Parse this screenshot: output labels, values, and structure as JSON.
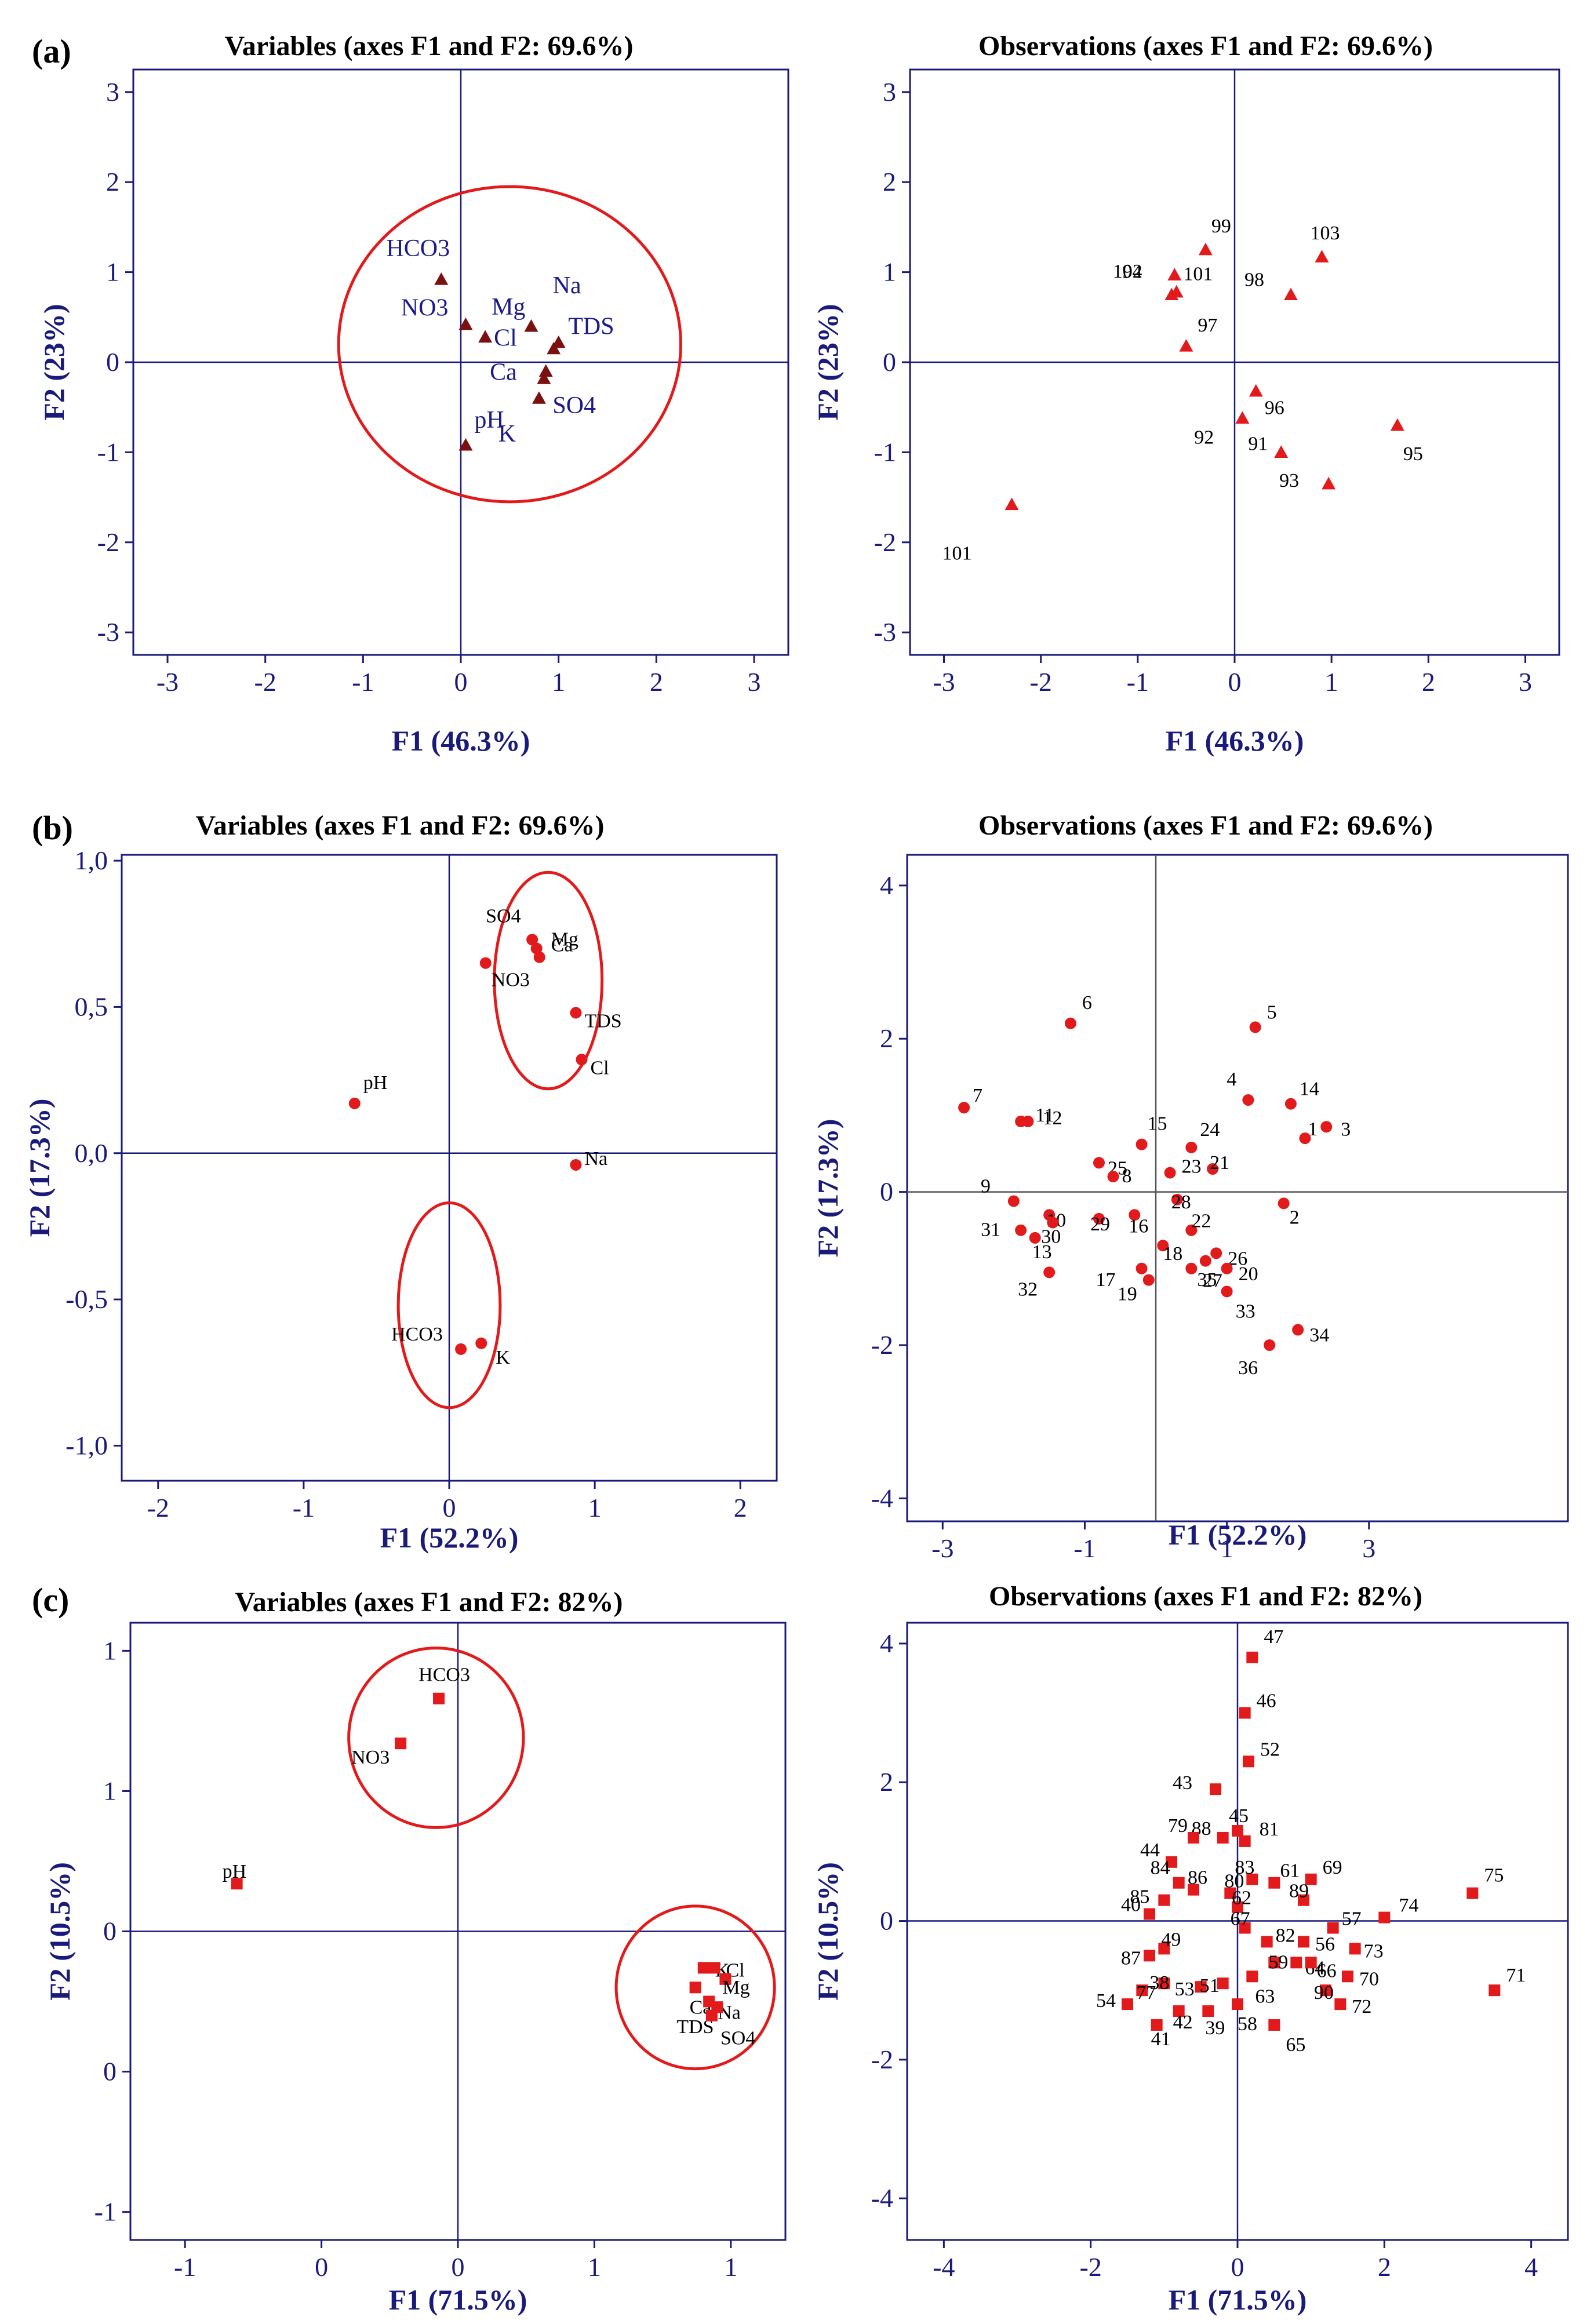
{
  "figure_labels": [
    "(a)",
    "(b)",
    "(c)"
  ],
  "colors": {
    "axis": "#1a1a7a",
    "red": "#e31a1c",
    "darkred": "#7a1010",
    "circle": "#e31a1c"
  },
  "chart_data": [
    {
      "id": "a-var",
      "type": "scatter",
      "title": "Variables (axes F1 and F2: 69.6%)",
      "xlabel": "F1 (46.3%)",
      "ylabel": "F2 (23%)",
      "xlim": [
        -3.35,
        3.35
      ],
      "ylim": [
        -3.25,
        3.25
      ],
      "xticks": [
        -3,
        -2,
        -1,
        0,
        1,
        2,
        3
      ],
      "xtick_labels": [
        "-3",
        "-2",
        "-1",
        "0",
        "1",
        "2",
        "3"
      ],
      "yticks": [
        -3,
        -2,
        -1,
        0,
        1,
        2,
        3
      ],
      "ytick_labels": [
        "-3",
        "-2",
        "-1",
        "0",
        "1",
        "2",
        "3"
      ],
      "marker": "triangle",
      "color": "#7a1010",
      "label_color": "#1a1a8a",
      "points": [
        {
          "label": "HCO3",
          "x": -0.2,
          "y": 0.92
        },
        {
          "label": "NO3",
          "x": 0.05,
          "y": 0.42
        },
        {
          "label": "Cl",
          "x": 0.25,
          "y": 0.28
        },
        {
          "label": "Mg",
          "x": 0.72,
          "y": 0.4
        },
        {
          "label": "Na",
          "x": 1.0,
          "y": 0.22
        },
        {
          "label": "TDS",
          "x": 0.95,
          "y": 0.15
        },
        {
          "label": "Ca",
          "x": 0.87,
          "y": -0.1
        },
        {
          "label": "K",
          "x": 0.8,
          "y": -0.4
        },
        {
          "label": "SO4",
          "x": 0.85,
          "y": -0.18
        },
        {
          "label": "pH",
          "x": 0.05,
          "y": -0.92
        }
      ],
      "circles": [
        {
          "cx": 0.5,
          "cy": 0.2,
          "r": 1.75
        }
      ]
    },
    {
      "id": "a-obs",
      "type": "scatter",
      "title": "Observations (axes F1 and F2: 69.6%)",
      "xlabel": "F1 (46.3%)",
      "ylabel": "F2 (23%)",
      "xlim": [
        -3.35,
        3.35
      ],
      "ylim": [
        -3.25,
        3.25
      ],
      "xticks": [
        -3,
        -2,
        -1,
        0,
        1,
        2,
        3
      ],
      "xtick_labels": [
        "-3",
        "-2",
        "-1",
        "0",
        "1",
        "2",
        "3"
      ],
      "yticks": [
        -3,
        -2,
        -1,
        0,
        1,
        2,
        3
      ],
      "ytick_labels": [
        "-3",
        "-2",
        "-1",
        "0",
        "1",
        "2",
        "3"
      ],
      "marker": "triangle",
      "color": "#e31a1c",
      "label_color": "#000",
      "points": [
        {
          "label": "103",
          "x": 0.9,
          "y": 1.17
        },
        {
          "label": "99",
          "x": -0.3,
          "y": 1.25
        },
        {
          "label": "98",
          "x": 0.58,
          "y": 0.75
        },
        {
          "label": "94",
          "x": -0.62,
          "y": 0.97
        },
        {
          "label": "102",
          "x": -0.6,
          "y": 0.78
        },
        {
          "label": "101",
          "x": -0.65,
          "y": 0.75
        },
        {
          "label": "97",
          "x": -0.5,
          "y": 0.18
        },
        {
          "label": "96",
          "x": 0.22,
          "y": -0.32
        },
        {
          "label": "95",
          "x": 1.68,
          "y": -0.7
        },
        {
          "label": "91",
          "x": 0.08,
          "y": -0.62
        },
        {
          "label": "92",
          "x": 0.48,
          "y": -1.0
        },
        {
          "label": "93",
          "x": 0.97,
          "y": -1.35
        },
        {
          "label": "101",
          "x": -2.3,
          "y": -1.58
        }
      ],
      "circles": []
    },
    {
      "id": "b-var",
      "type": "scatter",
      "title": "Variables (axes F1 and F2: 69.6%)",
      "xlabel": "F1 (52.2%)",
      "ylabel": "F2 (17.3%)",
      "xlim": [
        -2.25,
        2.25
      ],
      "ylim": [
        -1.12,
        1.02
      ],
      "xticks": [
        -2,
        -1,
        0,
        1,
        2
      ],
      "xtick_labels": [
        "-2",
        "-1",
        "0",
        "1",
        "2"
      ],
      "yticks": [
        -1,
        -0.5,
        0,
        0.5,
        1
      ],
      "ytick_labels": [
        "-1,0",
        "-0,5",
        "0,0",
        "0,5",
        "1,0"
      ],
      "marker": "circle",
      "color": "#e31a1c",
      "label_color": "#000",
      "points": [
        {
          "label": "SO4",
          "x": 0.57,
          "y": 0.73
        },
        {
          "label": "Mg",
          "x": 0.62,
          "y": 0.67
        },
        {
          "label": "NO3",
          "x": 0.25,
          "y": 0.65
        },
        {
          "label": "Ca",
          "x": 0.6,
          "y": 0.7
        },
        {
          "label": "TDS",
          "x": 0.87,
          "y": 0.48
        },
        {
          "label": "Cl",
          "x": 0.91,
          "y": 0.32
        },
        {
          "label": "pH",
          "x": -0.65,
          "y": 0.17
        },
        {
          "label": "Na",
          "x": 0.87,
          "y": -0.04
        },
        {
          "label": "HCO3",
          "x": 0.08,
          "y": -0.67
        },
        {
          "label": "K",
          "x": 0.22,
          "y": -0.65
        }
      ],
      "circles": [
        {
          "cx": 0.68,
          "cy": 0.59,
          "r": 0.37
        },
        {
          "cx": 0,
          "cy": -0.52,
          "r": 0.35
        }
      ]
    },
    {
      "id": "b-obs",
      "type": "scatter",
      "title": "Observations (axes F1 and F2: 69.6%)",
      "xlabel": "F1 (52.2%)",
      "ylabel": "F2 (17.3%)",
      "xlim": [
        -3.5,
        5.8
      ],
      "ylim": [
        -4.3,
        4.4
      ],
      "xticks": [
        -3,
        -1,
        1,
        3
      ],
      "xtick_labels": [
        "-3",
        "-1",
        "1",
        "3"
      ],
      "yticks": [
        -4,
        -2,
        0,
        2,
        4
      ],
      "ytick_labels": [
        "-4",
        "-2",
        "0",
        "2",
        "4"
      ],
      "marker": "circle",
      "color": "#e31a1c",
      "label_color": "#000",
      "points": [
        {
          "label": "6",
          "x": -1.2,
          "y": 2.2
        },
        {
          "label": "5",
          "x": 1.4,
          "y": 2.15
        },
        {
          "label": "7",
          "x": -2.7,
          "y": 1.1
        },
        {
          "label": "11",
          "x": -1.9,
          "y": 0.92
        },
        {
          "label": "4",
          "x": 1.3,
          "y": 1.2
        },
        {
          "label": "14",
          "x": 1.9,
          "y": 1.15
        },
        {
          "label": "1",
          "x": 2.1,
          "y": 0.7
        },
        {
          "label": "3",
          "x": 2.4,
          "y": 0.85
        },
        {
          "label": "12",
          "x": -1.8,
          "y": 0.92
        },
        {
          "label": "25",
          "x": -0.8,
          "y": 0.38
        },
        {
          "label": "15",
          "x": -0.2,
          "y": 0.62
        },
        {
          "label": "24",
          "x": 0.5,
          "y": 0.58
        },
        {
          "label": "8",
          "x": -0.6,
          "y": 0.2
        },
        {
          "label": "23",
          "x": 0.2,
          "y": 0.25
        },
        {
          "label": "2",
          "x": 1.8,
          "y": -0.15
        },
        {
          "label": "9",
          "x": -2.0,
          "y": -0.12
        },
        {
          "label": "10",
          "x": -1.5,
          "y": -0.3
        },
        {
          "label": "29",
          "x": -0.8,
          "y": -0.35
        },
        {
          "label": "16",
          "x": -0.3,
          "y": -0.3
        },
        {
          "label": "28",
          "x": 0.3,
          "y": -0.1
        },
        {
          "label": "21",
          "x": 0.8,
          "y": 0.3
        },
        {
          "label": "31",
          "x": -1.9,
          "y": -0.5
        },
        {
          "label": "30",
          "x": -1.45,
          "y": -0.4
        },
        {
          "label": "22",
          "x": 0.5,
          "y": -0.5
        },
        {
          "label": "26",
          "x": 0.85,
          "y": -0.8
        },
        {
          "label": "13",
          "x": -1.7,
          "y": -0.6
        },
        {
          "label": "18",
          "x": 0.1,
          "y": -0.7
        },
        {
          "label": "17",
          "x": -0.2,
          "y": -1.0
        },
        {
          "label": "35",
          "x": 0.5,
          "y": -1.0
        },
        {
          "label": "20",
          "x": 1.0,
          "y": -1.0
        },
        {
          "label": "32",
          "x": -1.5,
          "y": -1.05
        },
        {
          "label": "19",
          "x": -0.1,
          "y": -1.15
        },
        {
          "label": "27",
          "x": 0.7,
          "y": -0.9
        },
        {
          "label": "33",
          "x": 1.0,
          "y": -1.3
        },
        {
          "label": "36",
          "x": 1.6,
          "y": -2.0
        },
        {
          "label": "34",
          "x": 2.0,
          "y": -1.8
        }
      ],
      "circles": []
    },
    {
      "id": "c-var",
      "type": "scatter",
      "title": "Variables (axes F1 and F2: 82%)",
      "xlabel": "F1 (71.5%)",
      "ylabel": "F2 (10.5%)",
      "xlim": [
        -1.2,
        1.2
      ],
      "ylim": [
        -1.1,
        1.1
      ],
      "xticks": [
        -1,
        -0.5,
        0,
        0.5,
        1
      ],
      "xtick_labels": [
        "-1",
        "0",
        "0",
        "1",
        "1"
      ],
      "yticks": [
        -1,
        -0.5,
        0,
        0.5,
        1
      ],
      "ytick_labels": [
        "-1",
        "0",
        "0",
        "1",
        "1"
      ],
      "marker": "square",
      "color": "#e31a1c",
      "label_color": "#000",
      "points": [
        {
          "label": "HCO3",
          "x": -0.07,
          "y": 0.83
        },
        {
          "label": "NO3",
          "x": -0.21,
          "y": 0.67
        },
        {
          "label": "pH",
          "x": -0.81,
          "y": 0.17
        },
        {
          "label": "K",
          "x": 0.9,
          "y": -0.13
        },
        {
          "label": "Cl",
          "x": 0.94,
          "y": -0.13
        },
        {
          "label": "Mg",
          "x": 0.98,
          "y": -0.17
        },
        {
          "label": "Ca",
          "x": 0.87,
          "y": -0.2
        },
        {
          "label": "Na",
          "x": 0.92,
          "y": -0.25
        },
        {
          "label": "TDS",
          "x": 0.95,
          "y": -0.27
        },
        {
          "label": "SO4",
          "x": 0.93,
          "y": -0.3
        }
      ],
      "circles": [
        {
          "cx": -0.08,
          "cy": 0.69,
          "r": 0.32
        },
        {
          "cx": 0.87,
          "cy": -0.2,
          "r": 0.29
        }
      ]
    },
    {
      "id": "c-obs",
      "type": "scatter",
      "title": "Observations (axes F1 and F2: 82%)",
      "xlabel": "F1 (71.5%)",
      "ylabel": "F2 (10.5%)",
      "xlim": [
        -4.5,
        4.5
      ],
      "ylim": [
        -4.6,
        4.3
      ],
      "xticks": [
        -4,
        -2,
        0,
        2,
        4
      ],
      "xtick_labels": [
        "-4",
        "-2",
        "0",
        "2",
        "4"
      ],
      "yticks": [
        -4,
        -2,
        0,
        2,
        4
      ],
      "ytick_labels": [
        "-4",
        "-2",
        "0",
        "2",
        "4"
      ],
      "marker": "square",
      "color": "#e31a1c",
      "label_color": "#000",
      "points": [
        {
          "label": "47",
          "x": 0.2,
          "y": 3.8
        },
        {
          "label": "46",
          "x": 0.1,
          "y": 3.0
        },
        {
          "label": "52",
          "x": 0.15,
          "y": 2.3
        },
        {
          "label": "43",
          "x": -0.3,
          "y": 1.9
        },
        {
          "label": "88",
          "x": -0.2,
          "y": 1.2
        },
        {
          "label": "45",
          "x": 0.0,
          "y": 1.3
        },
        {
          "label": "81",
          "x": 0.1,
          "y": 1.15
        },
        {
          "label": "79",
          "x": -0.6,
          "y": 1.2
        },
        {
          "label": "44",
          "x": -0.9,
          "y": 0.85
        },
        {
          "label": "83",
          "x": 0.2,
          "y": 0.6
        },
        {
          "label": "61",
          "x": 0.5,
          "y": 0.55
        },
        {
          "label": "69",
          "x": 1.0,
          "y": 0.6
        },
        {
          "label": "84",
          "x": -0.8,
          "y": 0.55
        },
        {
          "label": "80",
          "x": -0.1,
          "y": 0.4
        },
        {
          "label": "86",
          "x": -0.6,
          "y": 0.45
        },
        {
          "label": "85",
          "x": -1.0,
          "y": 0.3
        },
        {
          "label": "62",
          "x": 0.0,
          "y": 0.2
        },
        {
          "label": "89",
          "x": 0.9,
          "y": 0.3
        },
        {
          "label": "40",
          "x": -1.2,
          "y": 0.1
        },
        {
          "label": "82",
          "x": 0.4,
          "y": -0.3
        },
        {
          "label": "57",
          "x": 1.3,
          "y": -0.1
        },
        {
          "label": "67",
          "x": 0.1,
          "y": -0.1
        },
        {
          "label": "56",
          "x": 0.9,
          "y": -0.3
        },
        {
          "label": "73",
          "x": 1.6,
          "y": -0.4
        },
        {
          "label": "74",
          "x": 2.0,
          "y": 0.05
        },
        {
          "label": "75",
          "x": 3.2,
          "y": 0.4
        },
        {
          "label": "49",
          "x": -1.0,
          "y": -0.4
        },
        {
          "label": "87",
          "x": -1.2,
          "y": -0.5
        },
        {
          "label": "59",
          "x": 0.5,
          "y": -0.6
        },
        {
          "label": "64",
          "x": 0.8,
          "y": -0.6
        },
        {
          "label": "66",
          "x": 1.0,
          "y": -0.6
        },
        {
          "label": "63",
          "x": 0.2,
          "y": -0.8
        },
        {
          "label": "53",
          "x": -0.5,
          "y": -0.95
        },
        {
          "label": "51",
          "x": -0.2,
          "y": -0.9
        },
        {
          "label": "70",
          "x": 1.5,
          "y": -0.8
        },
        {
          "label": "90",
          "x": 1.2,
          "y": -1.0
        },
        {
          "label": "71",
          "x": 3.5,
          "y": -1.0
        },
        {
          "label": "54",
          "x": -1.5,
          "y": -1.2
        },
        {
          "label": "77",
          "x": -1.3,
          "y": -1.0
        },
        {
          "label": "38",
          "x": -1.0,
          "y": -0.9
        },
        {
          "label": "58",
          "x": 0.0,
          "y": -1.2
        },
        {
          "label": "72",
          "x": 1.4,
          "y": -1.2
        },
        {
          "label": "39",
          "x": -0.4,
          "y": -1.3
        },
        {
          "label": "42",
          "x": -0.8,
          "y": -1.3
        },
        {
          "label": "41",
          "x": -1.1,
          "y": -1.5
        },
        {
          "label": "65",
          "x": 0.5,
          "y": -1.5
        }
      ],
      "circles": []
    }
  ]
}
